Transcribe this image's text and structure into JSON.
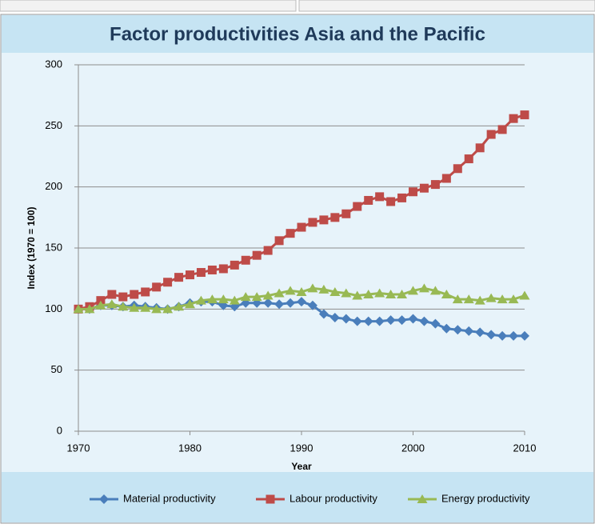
{
  "chart_data": {
    "type": "line",
    "title": "Factor productivities Asia and the Pacific",
    "x_label": "Year",
    "y_label": "Index (1970 = 100)",
    "x": [
      1970,
      1971,
      1972,
      1973,
      1974,
      1975,
      1976,
      1977,
      1978,
      1979,
      1980,
      1981,
      1982,
      1983,
      1984,
      1985,
      1986,
      1987,
      1988,
      1989,
      1990,
      1991,
      1992,
      1993,
      1994,
      1995,
      1996,
      1997,
      1998,
      1999,
      2000,
      2001,
      2002,
      2003,
      2004,
      2005,
      2006,
      2007,
      2008,
      2009,
      2010
    ],
    "series": [
      {
        "name": "Material productivity",
        "color": "#4a7ebb",
        "marker": "diamond",
        "values": [
          100,
          100,
          103,
          103,
          102,
          103,
          102,
          101,
          100,
          102,
          105,
          106,
          106,
          103,
          102,
          105,
          105,
          105,
          104,
          105,
          106,
          103,
          96,
          93,
          92,
          90,
          90,
          90,
          91,
          91,
          92,
          90,
          88,
          84,
          83,
          82,
          81,
          79,
          78,
          78,
          78
        ]
      },
      {
        "name": "Labour productivity",
        "color": "#be4b48",
        "marker": "square",
        "values": [
          100,
          102,
          107,
          112,
          110,
          112,
          114,
          118,
          122,
          126,
          128,
          130,
          132,
          133,
          136,
          140,
          144,
          148,
          156,
          162,
          167,
          171,
          173,
          175,
          178,
          184,
          189,
          192,
          188,
          191,
          196,
          199,
          202,
          207,
          215,
          223,
          232,
          243,
          247,
          256,
          259
        ]
      },
      {
        "name": "Energy productivity",
        "color": "#98b954",
        "marker": "triangle",
        "values": [
          100,
          100,
          103,
          104,
          102,
          101,
          101,
          100,
          100,
          102,
          104,
          107,
          108,
          108,
          107,
          110,
          110,
          111,
          113,
          115,
          114,
          117,
          116,
          114,
          113,
          111,
          112,
          113,
          112,
          112,
          115,
          117,
          115,
          112,
          108,
          108,
          107,
          109,
          108,
          108,
          111
        ]
      }
    ],
    "xlim": [
      1970,
      2010
    ],
    "xticks": [
      1970,
      1980,
      1990,
      2000,
      2010
    ],
    "ylim": [
      0,
      300
    ],
    "yticks": [
      0,
      50,
      100,
      150,
      200,
      250,
      300
    ],
    "grid": true,
    "legend": "bottom"
  }
}
